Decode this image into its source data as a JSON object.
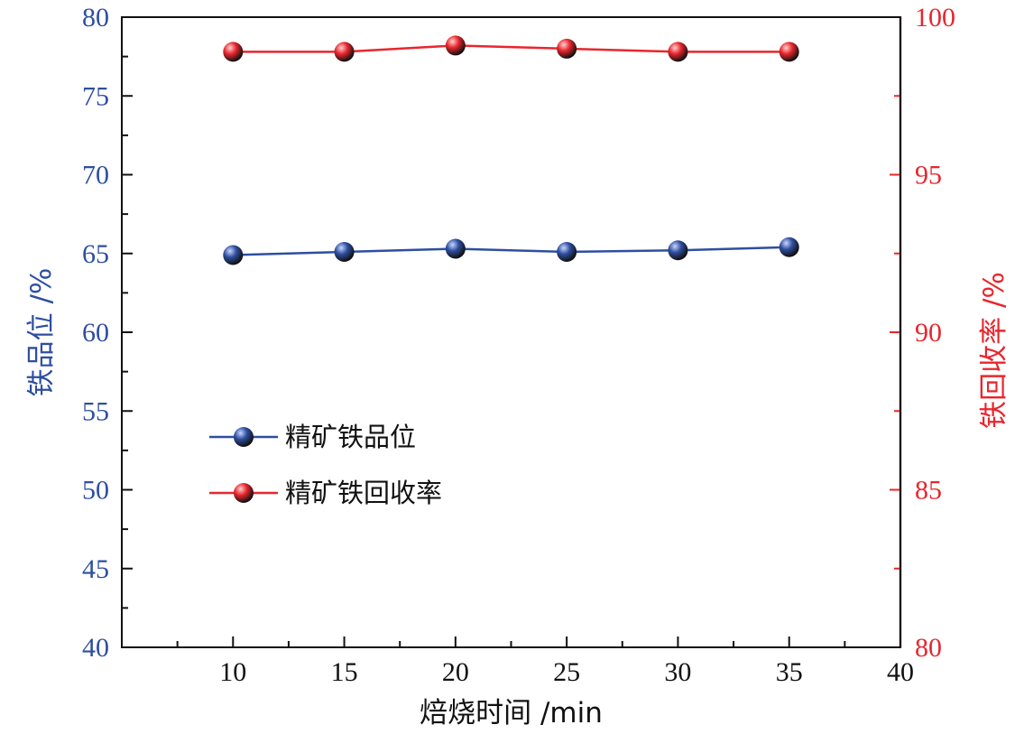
{
  "chart_data": {
    "type": "line",
    "xlabel": "焙烧时间 /min",
    "xlim": [
      5,
      40
    ],
    "xticks": [
      10,
      15,
      20,
      25,
      30,
      35,
      40
    ],
    "y_left": {
      "label": "铁品位 /%",
      "lim": [
        40,
        80
      ],
      "ticks": [
        40,
        45,
        50,
        55,
        60,
        65,
        70,
        75,
        80
      ],
      "color": "#2e4fa0"
    },
    "y_right": {
      "label": "铁回收率 /%",
      "lim": [
        80,
        100
      ],
      "ticks": [
        80,
        85,
        90,
        95,
        100
      ],
      "color": "#e8262d"
    },
    "x": [
      10,
      15,
      20,
      25,
      30,
      35
    ],
    "series": [
      {
        "name": "精矿铁品位",
        "axis": "left",
        "color": "#2e4fa0",
        "values": [
          64.9,
          65.1,
          65.3,
          65.1,
          65.2,
          65.4
        ]
      },
      {
        "name": "精矿铁回收率",
        "axis": "right",
        "color": "#e8262d",
        "values": [
          98.9,
          98.9,
          99.1,
          99.0,
          98.9,
          98.9
        ]
      }
    ],
    "legend_position": "center-left",
    "grid": false
  }
}
